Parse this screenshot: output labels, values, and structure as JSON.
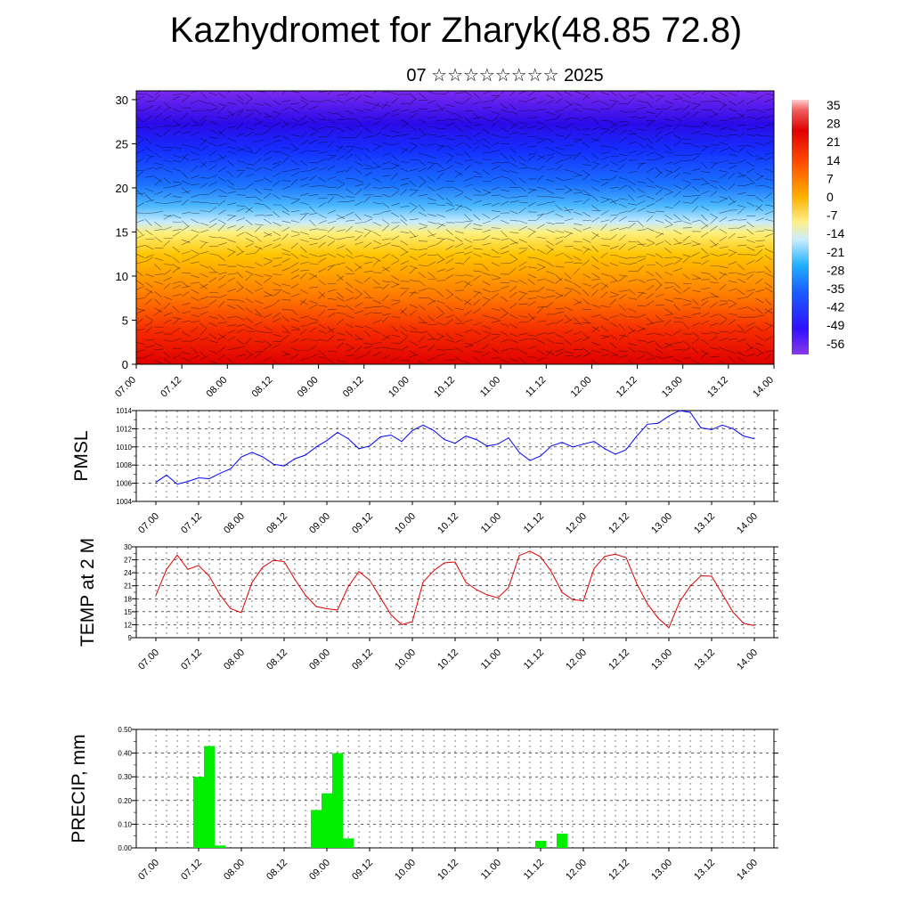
{
  "header": {
    "title": "Kazhydromet for Zharyk(48.85 72.8)",
    "subtitle": "07 ☆☆☆☆☆☆☆☆ 2025"
  },
  "colors": {
    "pmsl_line": "#0000ff",
    "temp_line": "#e00000",
    "precip_bar": "#00ee00",
    "grid": "#000000"
  },
  "chart_data": [
    {
      "type": "heatmap",
      "title": "",
      "x_tick_labels": [
        "07.00",
        "07.12",
        "08.00",
        "08.12",
        "09.00",
        "09.12",
        "10.00",
        "10.12",
        "11.00",
        "11.12",
        "12.00",
        "12.12",
        "13.00",
        "13.12",
        "14.00"
      ],
      "y_tick_labels": [
        "0",
        "5",
        "10",
        "15",
        "20",
        "25",
        "30"
      ],
      "ylim": [
        0,
        31
      ],
      "colorbar_labels": [
        "35",
        "28",
        "21",
        "14",
        "7",
        "0",
        "-7",
        "-14",
        "-21",
        "-28",
        "-35",
        "-42",
        "-49",
        "-56"
      ],
      "colorbar_range": [
        -60,
        38
      ],
      "overlay": "wind barbs",
      "note_values": "temperature decreasing with height: ~30 near surface, ~0 near level 16, ~-55 near level 27"
    },
    {
      "type": "line",
      "ylabel": "PMSL",
      "ylim": [
        1004,
        1014
      ],
      "y_tick_labels": [
        "1004",
        "1006",
        "1008",
        "1010",
        "1012",
        "1014"
      ],
      "x_tick_labels": [
        "07.00",
        "07.12",
        "08.00",
        "08.12",
        "09.00",
        "09.12",
        "10.00",
        "10.12",
        "11.00",
        "11.12",
        "12.00",
        "12.12",
        "13.00",
        "13.12",
        "14.00"
      ],
      "x_step_hours": 3,
      "values": [
        1006.1,
        1006.9,
        1005.9,
        1006.2,
        1006.6,
        1006.5,
        1007.1,
        1007.6,
        1008.9,
        1009.4,
        1008.9,
        1008.1,
        1007.9,
        1008.7,
        1009.1,
        1010.0,
        1010.7,
        1011.6,
        1010.9,
        1009.8,
        1010.1,
        1011.1,
        1011.3,
        1010.6,
        1011.8,
        1012.4,
        1011.8,
        1010.8,
        1010.4,
        1011.2,
        1010.8,
        1010.1,
        1010.3,
        1011.0,
        1009.4,
        1008.5,
        1009.0,
        1010.1,
        1010.5,
        1010.0,
        1010.3,
        1010.6,
        1009.8,
        1009.2,
        1009.7,
        1011.2,
        1012.5,
        1012.6,
        1013.4,
        1014.0,
        1013.8,
        1012.1,
        1011.9,
        1012.4,
        1012.0,
        1011.2,
        1010.9
      ]
    },
    {
      "type": "line",
      "ylabel": "TEMP at 2 M",
      "ylim": [
        9,
        30
      ],
      "y_tick_labels": [
        "9",
        "12",
        "15",
        "18",
        "21",
        "24",
        "27",
        "30"
      ],
      "x_tick_labels": [
        "07.00",
        "07.12",
        "08.00",
        "08.12",
        "09.00",
        "09.12",
        "10.00",
        "10.12",
        "11.00",
        "11.12",
        "12.00",
        "12.12",
        "13.00",
        "13.12",
        "14.00"
      ],
      "x_step_hours": 3,
      "values": [
        18.8,
        24.8,
        28.1,
        24.8,
        25.7,
        23.2,
        18.9,
        15.7,
        14.8,
        21.8,
        25.3,
        26.9,
        26.6,
        22.5,
        18.8,
        16.2,
        15.7,
        15.4,
        20.8,
        24.3,
        22.3,
        18.3,
        14.3,
        12.0,
        12.7,
        21.8,
        24.5,
        26.3,
        26.5,
        21.8,
        20.1,
        18.9,
        18.2,
        20.6,
        28.0,
        29.0,
        27.7,
        24.3,
        19.5,
        17.8,
        17.5,
        25.0,
        27.8,
        28.3,
        27.5,
        21.5,
        16.8,
        13.5,
        11.3,
        17.3,
        20.9,
        23.3,
        23.2,
        19.1,
        14.9,
        12.3,
        11.8
      ]
    },
    {
      "type": "bar",
      "ylabel": "PRECIP, mm",
      "ylim": [
        0,
        0.5
      ],
      "y_tick_labels": [
        "0.00",
        "0.10",
        "0.20",
        "0.30",
        "0.40",
        "0.50"
      ],
      "x_tick_labels": [
        "07.00",
        "07.12",
        "08.00",
        "08.12",
        "09.00",
        "09.12",
        "10.00",
        "10.12",
        "11.00",
        "11.12",
        "12.00",
        "12.12",
        "13.00",
        "13.12",
        "14.00"
      ],
      "x_step_hours": 3,
      "values": [
        0,
        0,
        0,
        0,
        0.3,
        0.43,
        0.01,
        0,
        0,
        0,
        0,
        0,
        0,
        0,
        0,
        0.16,
        0.23,
        0.4,
        0.04,
        0,
        0,
        0,
        0,
        0,
        0,
        0,
        0,
        0,
        0,
        0,
        0,
        0,
        0,
        0,
        0,
        0,
        0.03,
        0,
        0.06,
        0,
        0,
        0,
        0,
        0,
        0,
        0,
        0,
        0,
        0,
        0,
        0,
        0,
        0,
        0,
        0,
        0
      ]
    }
  ]
}
